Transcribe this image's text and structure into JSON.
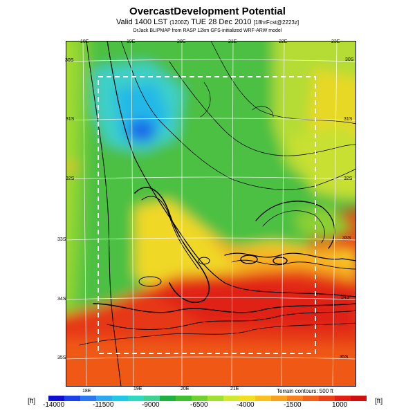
{
  "header": {
    "title": "OvercastDevelopment Potential",
    "subtitle_prefix": "Valid 1400 LST",
    "subtitle_small1": "(1200Z)",
    "subtitle_date": "TUE 28 Dec 2010",
    "subtitle_small2": "[18hrFcst@2223z]",
    "credit": "DrJack BLIPMAP from RASP 12km GFS-initialized WRF-ARW model"
  },
  "map": {
    "lon_labels_top": [
      "18E",
      "19E",
      "20E",
      "21E",
      "22E",
      "23E"
    ],
    "lon_labels_bottom": [
      "18E",
      "19E",
      "20E",
      "21E"
    ],
    "lat_labels_left": [
      "30S",
      "31S",
      "32S",
      "33S",
      "34S",
      "35S"
    ],
    "lat_labels_right": [
      "30S",
      "31S",
      "32S",
      "33S",
      "34S",
      "35S"
    ],
    "terrain_note": "Terrain contours: 500 ft"
  },
  "colorbar": {
    "unit_left": "[ft]",
    "unit_right": "[ft]",
    "labels": [
      "-14000",
      "-11500",
      "-9000",
      "-6500",
      "-4000",
      "-1500",
      "1000"
    ],
    "colors": [
      "#1010d0",
      "#1e40e8",
      "#2c78f0",
      "#30a8f0",
      "#20c8e8",
      "#30d8c0",
      "#40d090",
      "#20b040",
      "#40c030",
      "#70d030",
      "#a0e030",
      "#d0e830",
      "#f0e020",
      "#f8c020",
      "#f8a020",
      "#f88020",
      "#f06018",
      "#e84018",
      "#e02010",
      "#d01010"
    ]
  }
}
